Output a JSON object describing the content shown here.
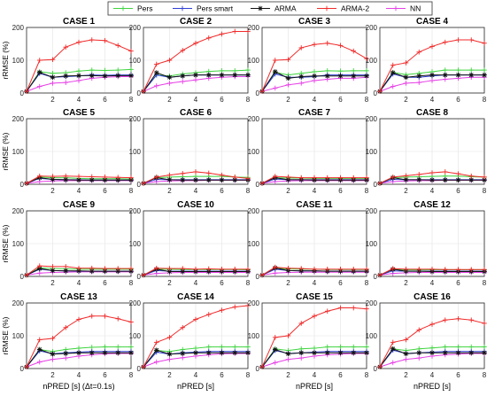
{
  "legend": {
    "items": [
      {
        "name": "Pers",
        "color": "#3fd43f",
        "marker": "plus"
      },
      {
        "name": "Pers smart",
        "color": "#2e3fd6",
        "marker": "plus"
      },
      {
        "name": "ARMA",
        "color": "#111111",
        "marker": "star"
      },
      {
        "name": "ARMA-2",
        "color": "#f02a2a",
        "marker": "plus"
      },
      {
        "name": "NN",
        "color": "#e63fe6",
        "marker": "plus"
      }
    ]
  },
  "labels": {
    "ylabel": "rRMSE (%)",
    "xlabel_first": "nPRED [s] (Δt=0.1s)",
    "xlabel": "nPRED [s]"
  },
  "chart_data": {
    "type": "line",
    "layout": "4x4 grid of subplots",
    "legend_position": "top",
    "grid": true,
    "xlim": [
      0,
      8
    ],
    "ylim": [
      0,
      200
    ],
    "xticks": [
      2,
      4,
      6,
      8
    ],
    "yticks": [
      0,
      100,
      200
    ],
    "x": [
      0,
      1,
      2,
      3,
      4,
      5,
      6,
      7,
      8
    ],
    "series_names": [
      "Pers",
      "Pers smart",
      "ARMA",
      "ARMA-2",
      "NN"
    ],
    "panels": [
      {
        "title": "CASE 1",
        "series": [
          [
            5,
            65,
            60,
            62,
            67,
            70,
            69,
            70,
            72
          ],
          [
            5,
            60,
            48,
            50,
            52,
            55,
            54,
            55,
            55
          ],
          [
            5,
            63,
            48,
            52,
            53,
            53,
            52,
            53,
            53
          ],
          [
            5,
            100,
            102,
            140,
            155,
            162,
            160,
            145,
            128
          ],
          [
            5,
            20,
            30,
            32,
            38,
            45,
            48,
            50,
            50
          ]
        ]
      },
      {
        "title": "CASE 2",
        "series": [
          [
            5,
            55,
            52,
            58,
            62,
            66,
            68,
            68,
            70
          ],
          [
            5,
            55,
            48,
            52,
            55,
            55,
            55,
            55,
            55
          ],
          [
            5,
            62,
            48,
            52,
            55,
            55,
            55,
            55,
            55
          ],
          [
            5,
            88,
            100,
            130,
            152,
            168,
            180,
            188,
            188
          ],
          [
            5,
            22,
            30,
            35,
            40,
            45,
            48,
            50,
            50
          ]
        ]
      },
      {
        "title": "CASE 3",
        "series": [
          [
            5,
            63,
            55,
            60,
            65,
            68,
            67,
            68,
            68
          ],
          [
            5,
            58,
            48,
            48,
            50,
            55,
            55,
            55,
            55
          ],
          [
            5,
            65,
            45,
            50,
            52,
            52,
            52,
            52,
            52
          ],
          [
            5,
            100,
            102,
            138,
            148,
            152,
            145,
            128,
            105
          ],
          [
            5,
            15,
            25,
            30,
            38,
            42,
            45,
            45,
            48
          ]
        ]
      },
      {
        "title": "CASE 4",
        "series": [
          [
            5,
            63,
            56,
            60,
            65,
            70,
            70,
            70,
            70
          ],
          [
            5,
            58,
            48,
            48,
            52,
            55,
            55,
            55,
            55
          ],
          [
            5,
            62,
            48,
            52,
            55,
            55,
            55,
            55,
            55
          ],
          [
            5,
            85,
            92,
            125,
            142,
            155,
            162,
            162,
            152
          ],
          [
            5,
            20,
            30,
            32,
            38,
            42,
            45,
            48,
            48
          ]
        ]
      },
      {
        "title": "CASE 5",
        "series": [
          [
            3,
            22,
            20,
            20,
            18,
            17,
            17,
            17,
            16
          ],
          [
            3,
            18,
            15,
            14,
            14,
            13,
            13,
            13,
            13
          ],
          [
            3,
            20,
            15,
            14,
            13,
            13,
            13,
            13,
            13
          ],
          [
            3,
            25,
            24,
            25,
            24,
            23,
            22,
            21,
            20
          ],
          [
            3,
            8,
            10,
            11,
            11,
            11,
            11,
            11,
            11
          ]
        ]
      },
      {
        "title": "CASE 6",
        "series": [
          [
            3,
            20,
            22,
            23,
            24,
            24,
            24,
            22,
            21
          ],
          [
            3,
            15,
            14,
            14,
            14,
            14,
            14,
            14,
            14
          ],
          [
            3,
            20,
            14,
            13,
            13,
            13,
            13,
            13,
            13
          ],
          [
            3,
            22,
            28,
            33,
            38,
            34,
            28,
            22,
            18
          ],
          [
            3,
            8,
            10,
            11,
            11,
            12,
            12,
            12,
            12
          ]
        ]
      },
      {
        "title": "CASE 7",
        "series": [
          [
            3,
            20,
            19,
            19,
            18,
            18,
            18,
            18,
            18
          ],
          [
            3,
            16,
            14,
            14,
            14,
            14,
            14,
            14,
            14
          ],
          [
            3,
            20,
            14,
            14,
            13,
            13,
            13,
            13,
            13
          ],
          [
            3,
            24,
            22,
            20,
            20,
            20,
            20,
            20,
            20
          ],
          [
            3,
            8,
            10,
            11,
            11,
            11,
            11,
            11,
            11
          ]
        ]
      },
      {
        "title": "CASE 8",
        "series": [
          [
            3,
            20,
            22,
            23,
            24,
            25,
            25,
            23,
            22
          ],
          [
            3,
            15,
            14,
            14,
            14,
            14,
            14,
            14,
            14
          ],
          [
            3,
            20,
            14,
            14,
            13,
            13,
            13,
            13,
            13
          ],
          [
            3,
            22,
            26,
            30,
            35,
            38,
            32,
            25,
            22
          ],
          [
            3,
            8,
            10,
            11,
            11,
            12,
            12,
            12,
            12
          ]
        ]
      },
      {
        "title": "CASE 9",
        "series": [
          [
            4,
            26,
            24,
            23,
            22,
            22,
            22,
            22,
            22
          ],
          [
            4,
            22,
            18,
            17,
            16,
            16,
            16,
            16,
            16
          ],
          [
            4,
            24,
            18,
            17,
            17,
            16,
            16,
            16,
            16
          ],
          [
            4,
            32,
            30,
            30,
            25,
            25,
            24,
            24,
            24
          ],
          [
            4,
            10,
            12,
            13,
            14,
            14,
            14,
            14,
            14
          ]
        ]
      },
      {
        "title": "CASE 10",
        "series": [
          [
            4,
            22,
            22,
            21,
            21,
            21,
            21,
            21,
            20
          ],
          [
            4,
            18,
            16,
            16,
            16,
            16,
            16,
            16,
            16
          ],
          [
            4,
            22,
            15,
            15,
            15,
            15,
            15,
            15,
            15
          ],
          [
            4,
            25,
            24,
            24,
            22,
            23,
            22,
            22,
            22
          ],
          [
            4,
            9,
            11,
            12,
            12,
            12,
            12,
            12,
            12
          ]
        ]
      },
      {
        "title": "CASE 11",
        "series": [
          [
            4,
            25,
            23,
            22,
            22,
            21,
            21,
            21,
            21
          ],
          [
            4,
            22,
            18,
            17,
            17,
            16,
            16,
            16,
            16
          ],
          [
            4,
            26,
            18,
            17,
            17,
            16,
            16,
            16,
            16
          ],
          [
            4,
            28,
            25,
            24,
            22,
            22,
            22,
            22,
            22
          ],
          [
            4,
            10,
            12,
            13,
            13,
            13,
            13,
            13,
            13
          ]
        ]
      },
      {
        "title": "CASE 12",
        "series": [
          [
            4,
            21,
            20,
            20,
            20,
            20,
            20,
            20,
            20
          ],
          [
            4,
            17,
            16,
            16,
            16,
            16,
            16,
            16,
            16
          ],
          [
            4,
            22,
            16,
            16,
            15,
            15,
            15,
            15,
            15
          ],
          [
            4,
            24,
            22,
            22,
            22,
            21,
            21,
            21,
            21
          ],
          [
            4,
            9,
            11,
            12,
            12,
            12,
            12,
            12,
            12
          ]
        ]
      },
      {
        "title": "CASE 13",
        "series": [
          [
            5,
            58,
            52,
            58,
            62,
            65,
            66,
            66,
            66
          ],
          [
            5,
            54,
            45,
            48,
            50,
            52,
            52,
            52,
            52
          ],
          [
            5,
            58,
            44,
            46,
            48,
            48,
            48,
            48,
            48
          ],
          [
            5,
            88,
            92,
            125,
            150,
            160,
            160,
            152,
            142
          ],
          [
            5,
            20,
            28,
            32,
            38,
            42,
            45,
            46,
            46
          ]
        ]
      },
      {
        "title": "CASE 14",
        "series": [
          [
            5,
            55,
            52,
            58,
            62,
            66,
            66,
            66,
            66
          ],
          [
            5,
            50,
            44,
            48,
            50,
            52,
            52,
            52,
            52
          ],
          [
            5,
            56,
            44,
            46,
            48,
            48,
            48,
            48,
            48
          ],
          [
            5,
            80,
            95,
            125,
            150,
            165,
            178,
            188,
            192
          ],
          [
            5,
            20,
            28,
            33,
            38,
            42,
            45,
            46,
            46
          ]
        ]
      },
      {
        "title": "CASE 15",
        "series": [
          [
            5,
            60,
            55,
            60,
            62,
            66,
            66,
            66,
            66
          ],
          [
            5,
            55,
            46,
            48,
            50,
            52,
            52,
            52,
            52
          ],
          [
            5,
            58,
            45,
            48,
            48,
            48,
            48,
            48,
            48
          ],
          [
            5,
            95,
            100,
            138,
            160,
            175,
            185,
            185,
            182
          ],
          [
            5,
            18,
            28,
            32,
            38,
            42,
            44,
            46,
            46
          ]
        ]
      },
      {
        "title": "CASE 16",
        "series": [
          [
            5,
            60,
            55,
            60,
            63,
            66,
            66,
            66,
            66
          ],
          [
            5,
            56,
            46,
            48,
            50,
            52,
            52,
            52,
            52
          ],
          [
            5,
            60,
            45,
            48,
            48,
            48,
            48,
            48,
            48
          ],
          [
            5,
            80,
            88,
            118,
            135,
            148,
            152,
            148,
            138
          ],
          [
            5,
            18,
            28,
            32,
            38,
            42,
            44,
            46,
            46
          ]
        ]
      }
    ]
  }
}
